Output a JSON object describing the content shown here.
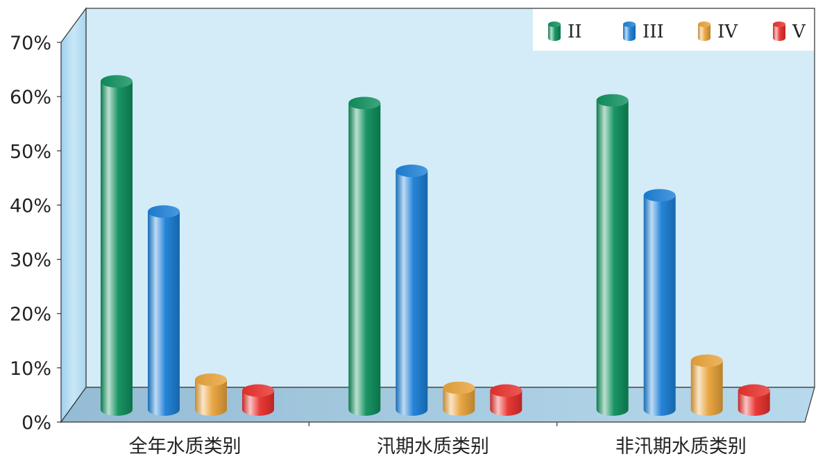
{
  "chart_data": {
    "type": "bar",
    "title": "",
    "xlabel": "",
    "ylabel": "",
    "ylim": [
      0,
      70
    ],
    "y_ticks": [
      "0%",
      "10%",
      "20%",
      "30%",
      "40%",
      "50%",
      "60%",
      "70%"
    ],
    "categories": [
      "全年水质类别",
      "汛期水质类别",
      "非汛期水质类别"
    ],
    "series": [
      {
        "name": "II",
        "values": [
          60.5,
          56.5,
          57.0
        ],
        "color": "#0e8f5c"
      },
      {
        "name": "III",
        "values": [
          36.5,
          44.0,
          39.5
        ],
        "color": "#1b7fd6"
      },
      {
        "name": "IV",
        "values": [
          5.5,
          4.0,
          9.0
        ],
        "color": "#e8a23a"
      },
      {
        "name": "V",
        "values": [
          3.5,
          3.5,
          3.5
        ],
        "color": "#e8302c"
      }
    ],
    "legend_position": "top-right",
    "style": "3d-cylinder",
    "grid": false,
    "background_color": "#d3ecf8",
    "floor_color": "#a9cbe0"
  }
}
